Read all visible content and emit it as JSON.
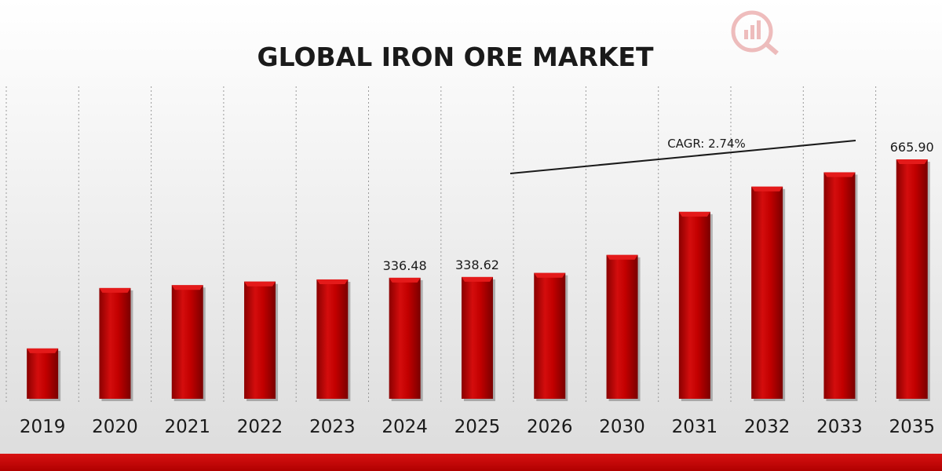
{
  "chart_data": {
    "type": "bar",
    "title": "GLOBAL IRON ORE MARKET",
    "categories": [
      "2019",
      "2020",
      "2021",
      "2022",
      "2023",
      "2024",
      "2025",
      "2026",
      "2030",
      "2031",
      "2032",
      "2033",
      "2035"
    ],
    "values": [
      140,
      308,
      316,
      326,
      332,
      336.48,
      338.62,
      350,
      400,
      520,
      590,
      630,
      665.9
    ],
    "data_labels": {
      "2024": "336.48",
      "2025": "338.62",
      "2035": "665.90"
    },
    "annotation": {
      "text": "CAGR: 2.74%"
    },
    "grid": false,
    "colors": {
      "bar": "#c40000",
      "bar_dark": "#7a0000",
      "bar_light": "#e41a1a"
    }
  }
}
